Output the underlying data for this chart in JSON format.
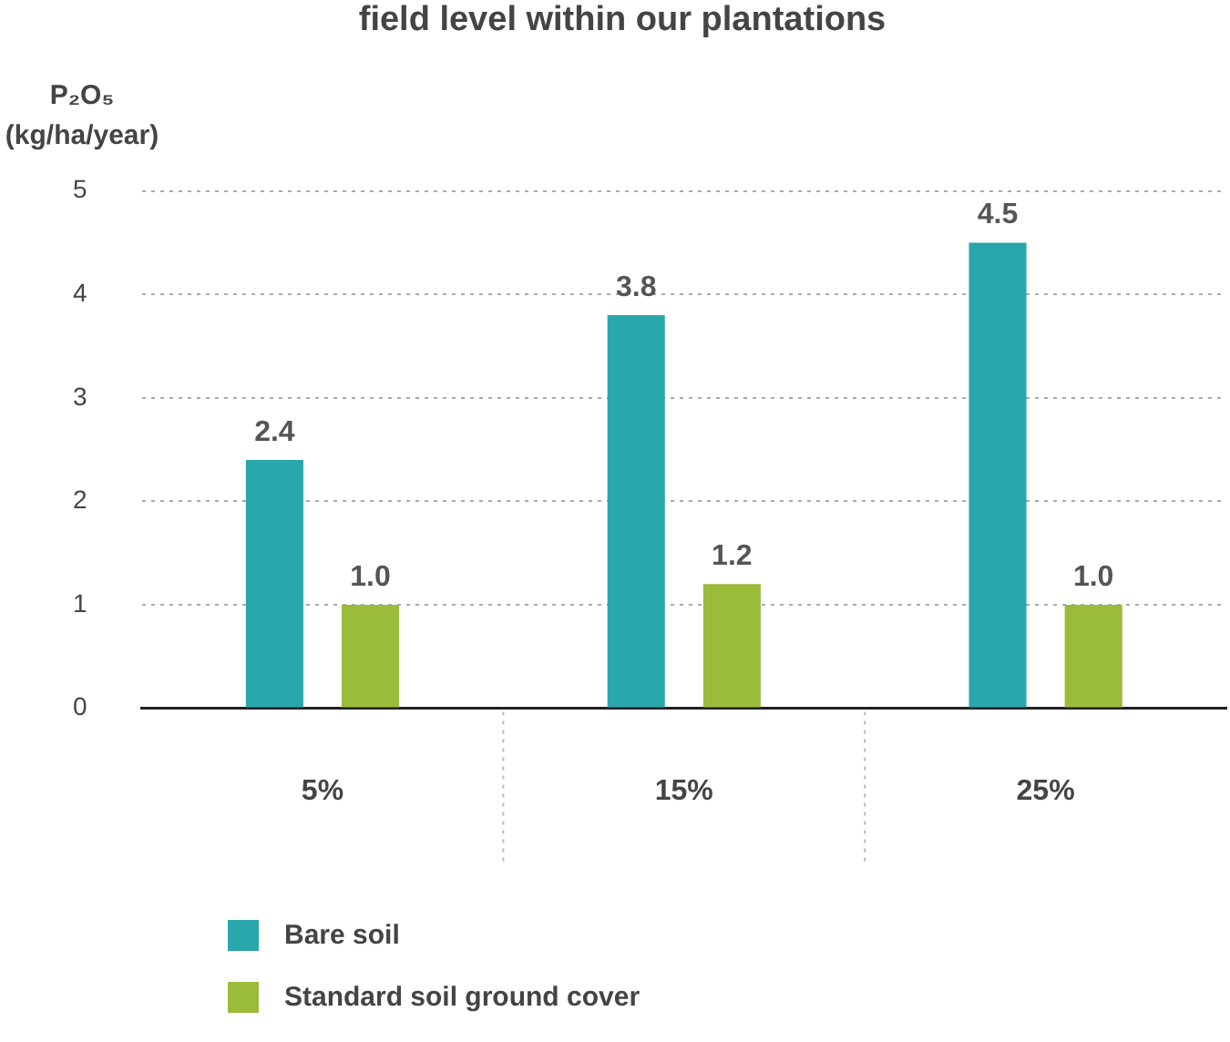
{
  "chart_data": {
    "type": "bar",
    "title": "field level within our plantations",
    "ylabel": "P₂O₅ (kg/ha/year)",
    "categories": [
      "5%",
      "15%",
      "25%"
    ],
    "series": [
      {
        "name": "Bare soil",
        "color": "#2aa6ad",
        "values": [
          2.4,
          3.8,
          4.5
        ],
        "value_labels": [
          "2.4",
          "3.8",
          "4.5"
        ]
      },
      {
        "name": "Standard soil ground cover",
        "color": "#9bbb3b",
        "values": [
          1.0,
          1.2,
          1.0
        ],
        "value_labels": [
          "1.0",
          "1.2",
          "1.0"
        ]
      }
    ],
    "ylim": [
      0,
      5
    ],
    "yticks": [
      0,
      1,
      2,
      3,
      4,
      5
    ],
    "grid": "y",
    "legend": "bottom"
  }
}
